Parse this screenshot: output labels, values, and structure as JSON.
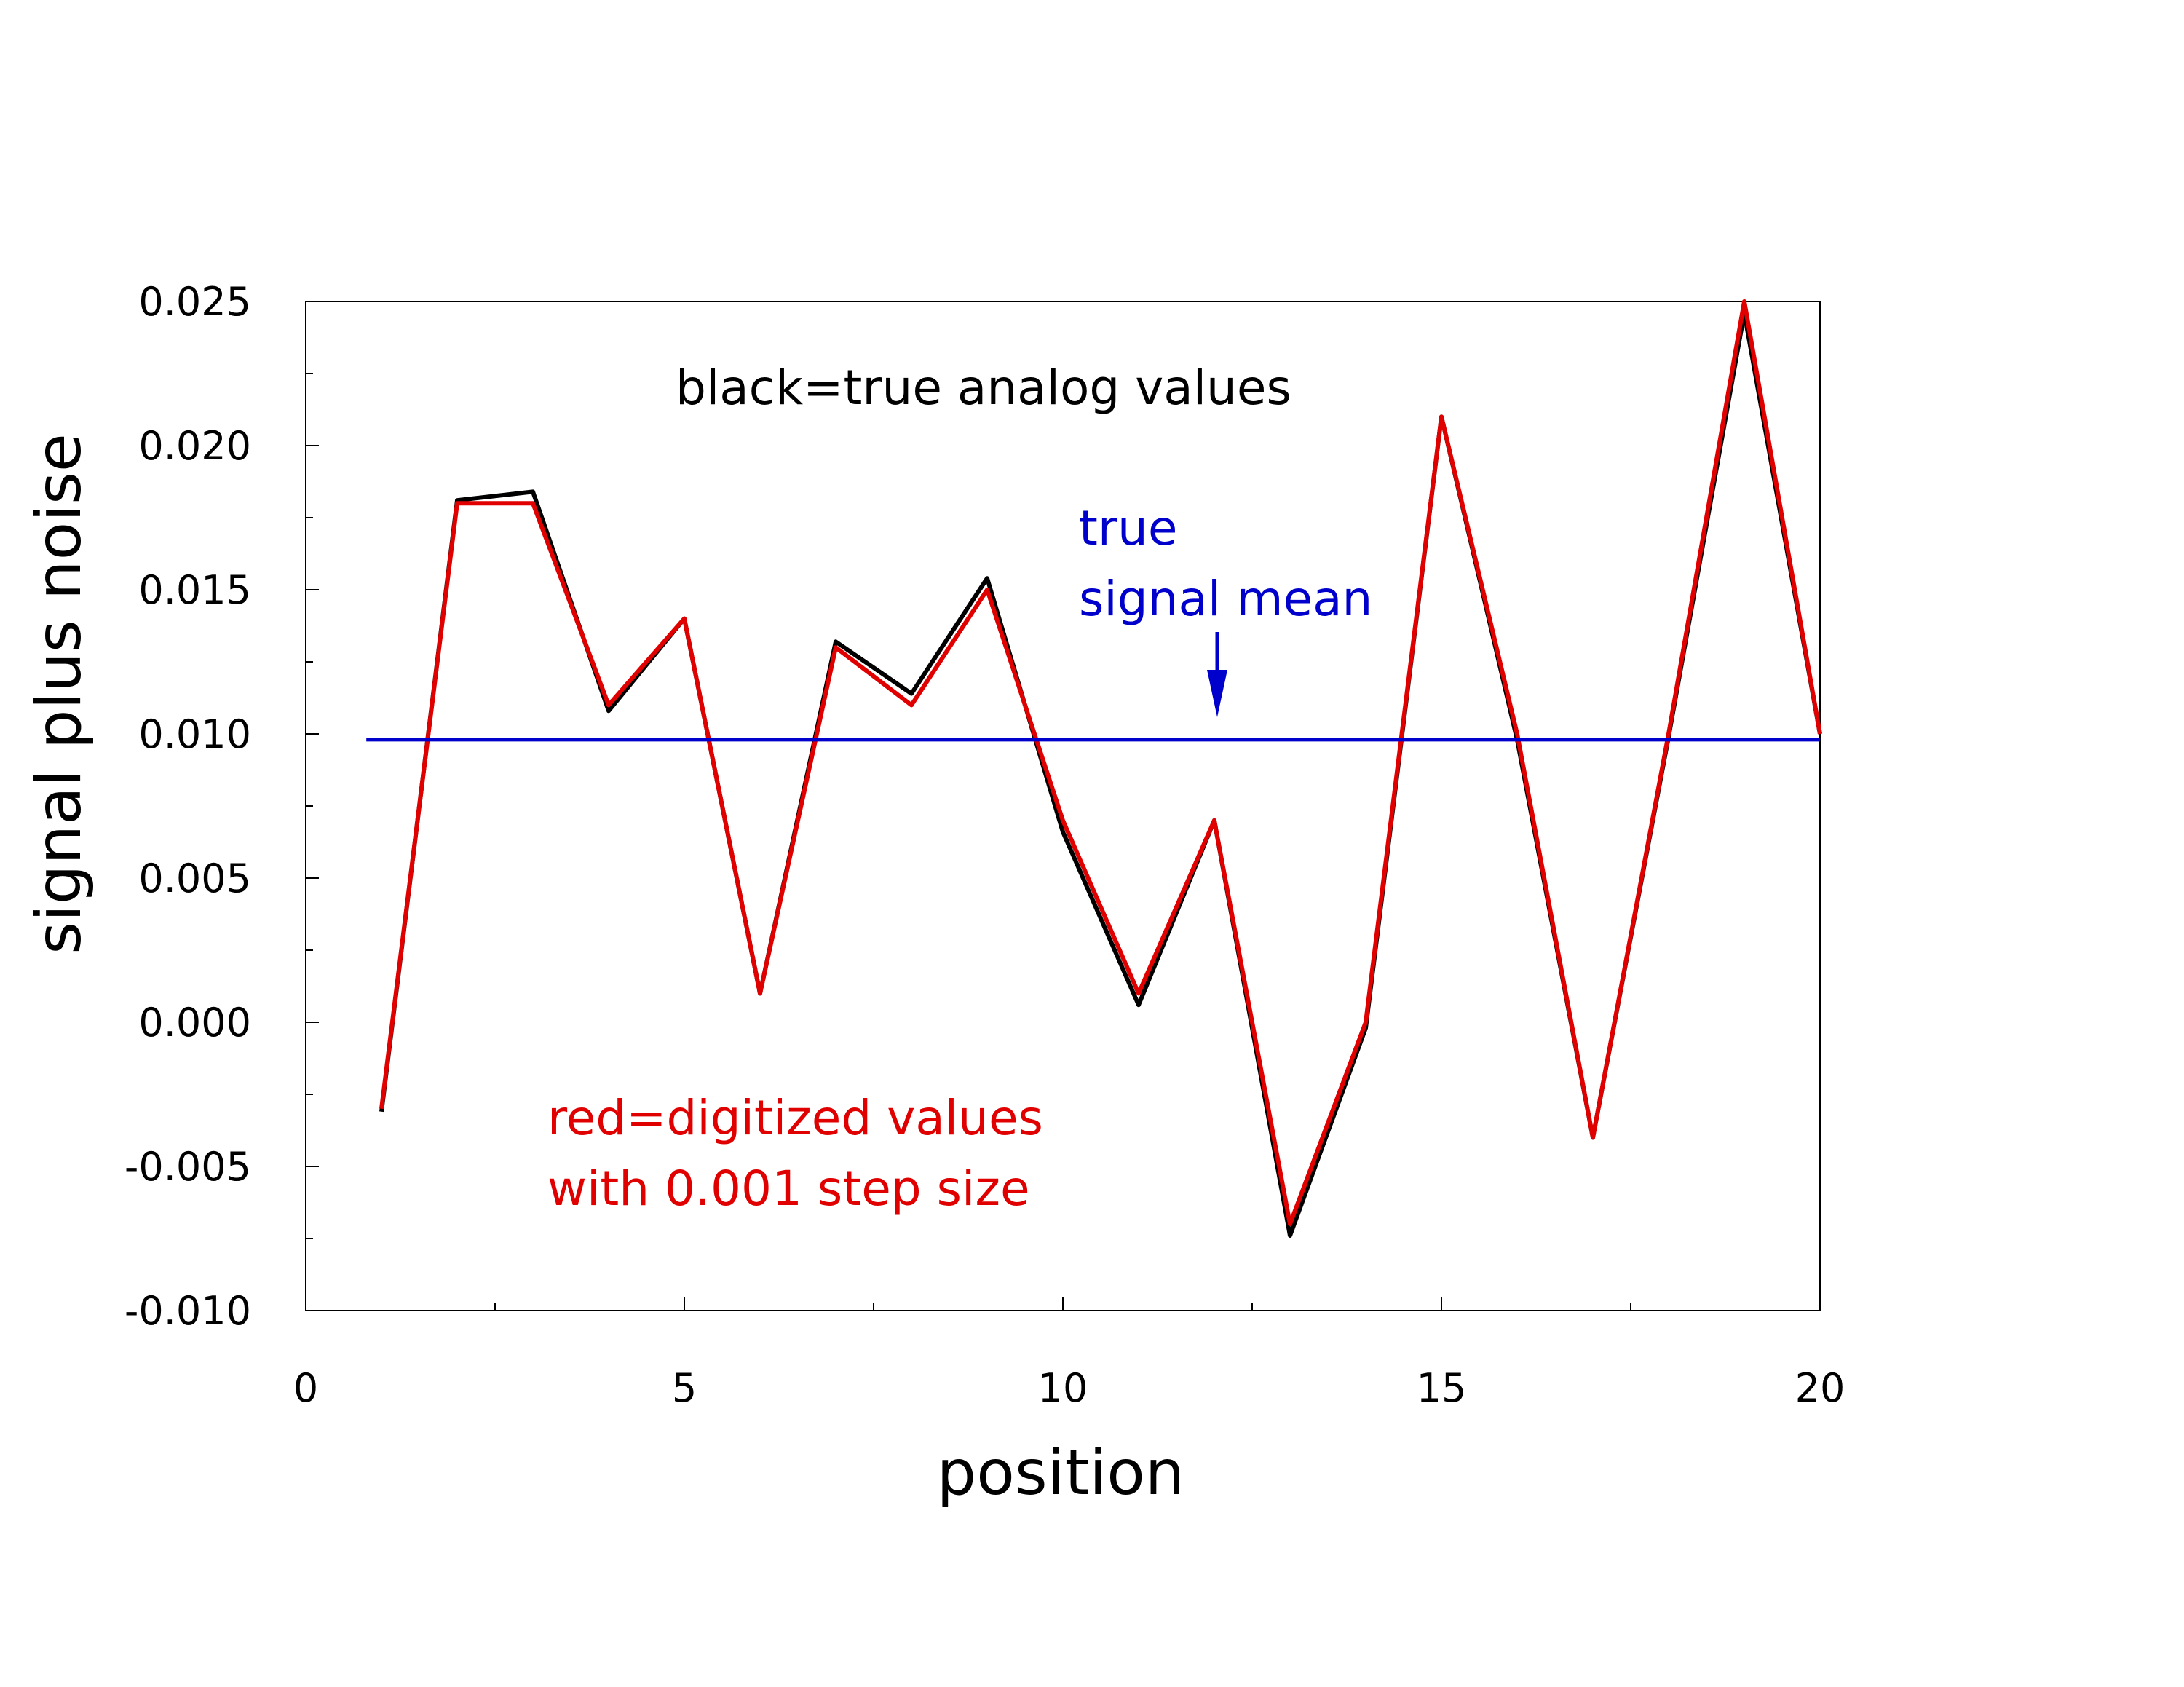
{
  "chart_data": {
    "type": "line",
    "xlabel": "position",
    "ylabel": "signal plus noise",
    "xlim": [
      0,
      20
    ],
    "ylim": [
      -0.01,
      0.025
    ],
    "x_ticks": [
      "0",
      "5",
      "10",
      "15",
      "20"
    ],
    "y_ticks": [
      "0.025",
      "0.020",
      "0.015",
      "0.010",
      "0.005",
      "0.000",
      "-0.005",
      "-0.010"
    ],
    "grid": false,
    "series": [
      {
        "color": "#000000",
        "x": [
          1,
          2,
          3,
          4,
          5,
          6,
          7,
          8,
          9,
          10,
          11,
          12,
          13,
          14,
          15,
          16,
          17,
          18,
          19,
          20
        ],
        "y": [
          -0.0031,
          0.0181,
          0.0184,
          0.0108,
          0.014,
          0.001,
          0.0132,
          0.0114,
          0.0154,
          0.0066,
          0.0006,
          0.007,
          -0.0074,
          -0.0002,
          0.021,
          0.0098,
          -0.004,
          0.0099,
          0.0246,
          0.01
        ]
      },
      {
        "color": "#e00000",
        "x": [
          1,
          2,
          3,
          4,
          5,
          6,
          7,
          8,
          9,
          10,
          11,
          12,
          13,
          14,
          15,
          16,
          17,
          18,
          19,
          20
        ],
        "y": [
          -0.003,
          0.018,
          0.018,
          0.011,
          0.014,
          0.001,
          0.013,
          0.011,
          0.015,
          0.007,
          0.001,
          0.007,
          -0.007,
          0.0,
          0.021,
          0.01,
          -0.004,
          0.01,
          0.025,
          0.01
        ]
      },
      {
        "color": "#0000cc",
        "x": [
          0.8,
          20
        ],
        "y": [
          0.0098,
          0.0098
        ]
      }
    ],
    "annotations": {
      "black_label": "black=true analog values",
      "blue_label_line1": "true",
      "blue_label_line2": "signal mean",
      "red_label_line1": "red=digitized values",
      "red_label_line2": "with 0.001 step size"
    },
    "colors": {
      "black": "#000000",
      "red": "#e00000",
      "blue": "#0000cc"
    }
  }
}
